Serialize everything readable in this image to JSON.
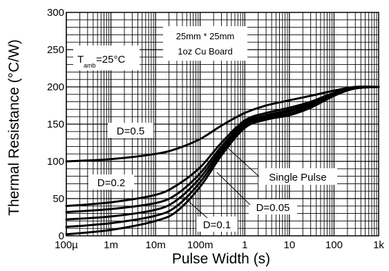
{
  "chart_data": {
    "type": "line",
    "xlabel": "Pulse Width (s)",
    "ylabel": "Thermal Resistance (°C/W)",
    "x_scale": "log",
    "xlim": [
      0.0001,
      1000
    ],
    "ylim": [
      0,
      300
    ],
    "x_ticks": [
      {
        "value": 0.0001,
        "label": "100µ"
      },
      {
        "value": 0.001,
        "label": "1m"
      },
      {
        "value": 0.01,
        "label": "10m"
      },
      {
        "value": 0.1,
        "label": "100m"
      },
      {
        "value": 1,
        "label": "1"
      },
      {
        "value": 10,
        "label": "10"
      },
      {
        "value": 100,
        "label": "100"
      },
      {
        "value": 1000,
        "label": "1k"
      }
    ],
    "y_ticks": [
      {
        "value": 0,
        "label": "0"
      },
      {
        "value": 50,
        "label": "50"
      },
      {
        "value": 100,
        "label": "100"
      },
      {
        "value": 150,
        "label": "150"
      },
      {
        "value": 200,
        "label": "200"
      },
      {
        "value": 250,
        "label": "250"
      },
      {
        "value": 300,
        "label": "300"
      }
    ],
    "grid": true,
    "x": [
      0.0001,
      0.001,
      0.01,
      0.03,
      0.1,
      0.3,
      1,
      3,
      10,
      30,
      100,
      300,
      1000
    ],
    "series": [
      {
        "name": "D=0.5",
        "values": [
          100,
          103,
          110,
          117,
          130,
          148,
          165,
          175,
          182,
          188,
          195,
          200,
          200
        ]
      },
      {
        "name": "D=0.2",
        "values": [
          40,
          45,
          55,
          68,
          92,
          125,
          155,
          165,
          172,
          180,
          192,
          199,
          200
        ]
      },
      {
        "name": "D=0.1",
        "values": [
          32,
          36,
          44,
          56,
          84,
          120,
          152,
          162,
          169,
          178,
          191,
          199,
          200
        ]
      },
      {
        "name": "D=0.05",
        "values": [
          22,
          26,
          35,
          48,
          78,
          116,
          150,
          160,
          167,
          176,
          190,
          198,
          200
        ]
      },
      {
        "name": "",
        "values": [
          12,
          17,
          27,
          40,
          72,
          112,
          147,
          158,
          164,
          174,
          189,
          198,
          200
        ]
      },
      {
        "name": "Single Pulse",
        "values": [
          2,
          8,
          20,
          33,
          66,
          108,
          145,
          156,
          162,
          172,
          188,
          198,
          200
        ]
      }
    ],
    "annotations": {
      "board_line1": "25mm * 25mm",
      "board_line2": "1oz Cu Board",
      "tamb_main": "T",
      "tamb_sub": "amb",
      "tamb_value": "=25°C",
      "label_d05": "D=0.5",
      "label_d02": "D=0.2",
      "label_d01": "D=0.1",
      "label_d005": "D=0.05",
      "label_single": "Single Pulse"
    }
  }
}
